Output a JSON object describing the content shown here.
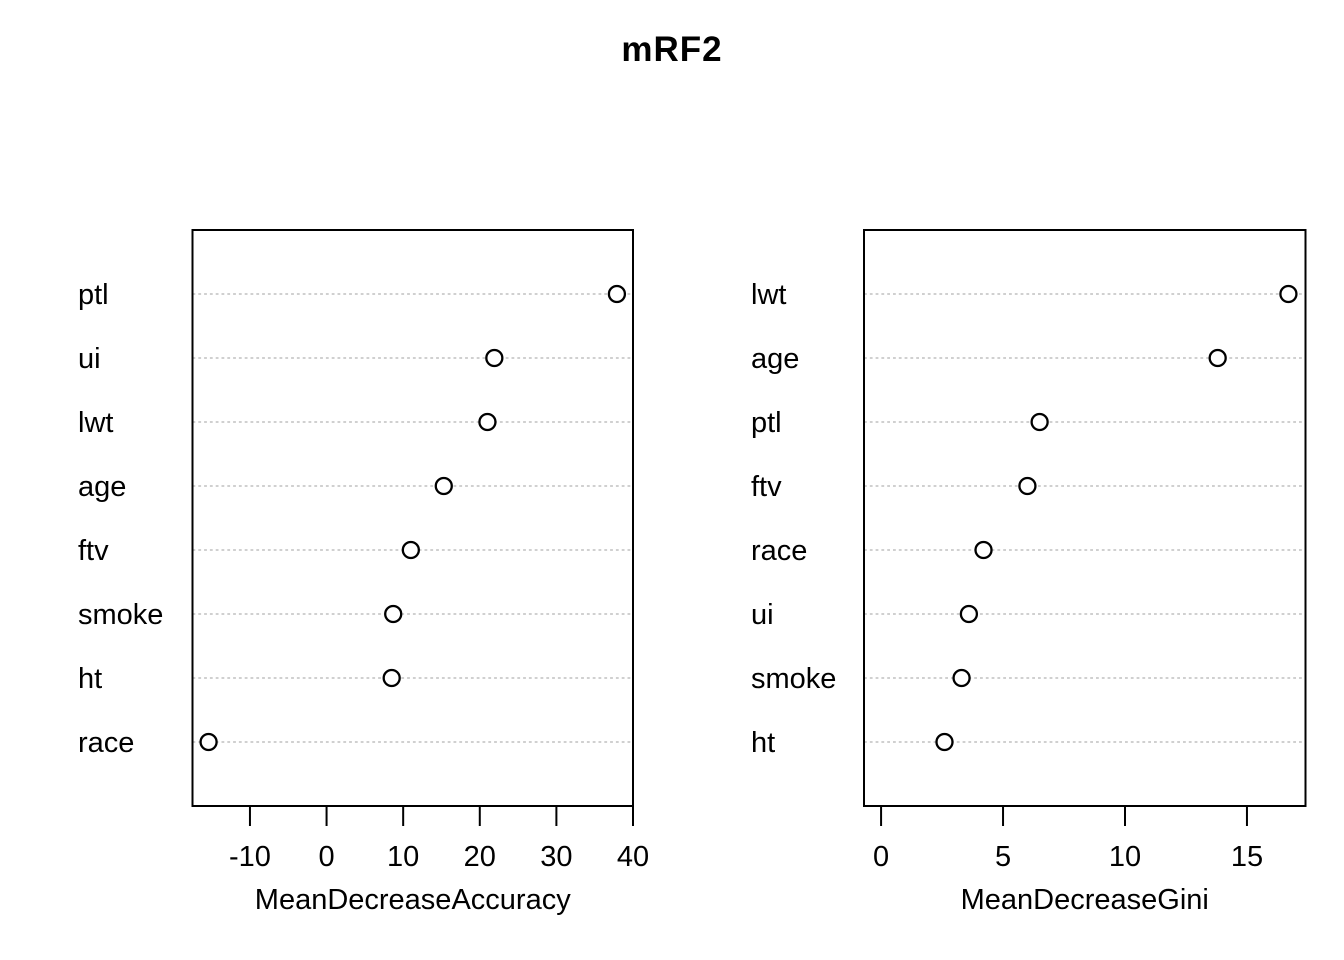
{
  "title": "mRF2",
  "colors": {
    "foreground": "#000000",
    "background": "#ffffff",
    "gridline": "#c0c0c0",
    "point_stroke": "#000000",
    "point_fill": "#ffffff"
  },
  "chart_data": [
    {
      "type": "scatter",
      "subtype": "dot-plot",
      "title": "mRF2",
      "xlabel": "MeanDecreaseAccuracy",
      "ylabel": "",
      "categories_order": "top-to-bottom",
      "categories": [
        "ptl",
        "ui",
        "lwt",
        "age",
        "ftv",
        "smoke",
        "ht",
        "race"
      ],
      "values": [
        37.9,
        21.9,
        21.0,
        15.3,
        11.0,
        8.7,
        8.5,
        -15.4
      ],
      "xlim": [
        -17.5,
        40.0
      ],
      "xticks": [
        -10,
        0,
        10,
        20,
        30,
        40
      ],
      "xtick_labels": [
        "-10",
        "0",
        "10",
        "20",
        "30",
        "40"
      ],
      "grid": "horizontal dotted line per category",
      "legend_position": "none",
      "marker": "open-circle"
    },
    {
      "type": "scatter",
      "subtype": "dot-plot",
      "title": "mRF2",
      "xlabel": "MeanDecreaseGini",
      "ylabel": "",
      "categories_order": "top-to-bottom",
      "categories": [
        "lwt",
        "age",
        "ptl",
        "ftv",
        "race",
        "ui",
        "smoke",
        "ht"
      ],
      "values": [
        16.7,
        13.8,
        6.5,
        6.0,
        4.2,
        3.6,
        3.3,
        2.6
      ],
      "xlim": [
        -0.7,
        17.4
      ],
      "xticks": [
        0,
        5,
        10,
        15
      ],
      "xtick_labels": [
        "0",
        "5",
        "10",
        "15"
      ],
      "grid": "horizontal dotted line per category",
      "legend_position": "none",
      "marker": "open-circle"
    }
  ]
}
